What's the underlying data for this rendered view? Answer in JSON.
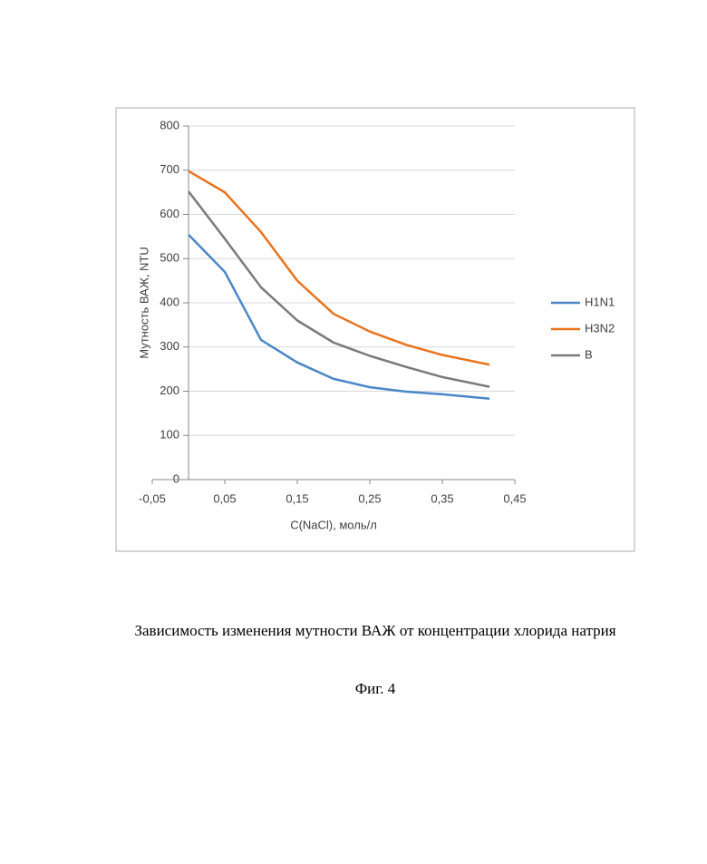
{
  "chart_data": {
    "type": "line",
    "x_label": "C(NaCl), моль/л",
    "y_label": "Мутность ВАЖ, NTU",
    "x": [
      0,
      0.05,
      0.1,
      0.15,
      0.2,
      0.25,
      0.3,
      0.35,
      0.415
    ],
    "series": [
      {
        "name": "H1N1",
        "color": "#4a86c8",
        "values": [
          554,
          470,
          316,
          265,
          228,
          209,
          199,
          193,
          183
        ]
      },
      {
        "name": "H3N2",
        "color": "#e8731f",
        "values": [
          698,
          650,
          560,
          450,
          375,
          335,
          305,
          282,
          260
        ]
      },
      {
        "name": "B",
        "color": "#7a7a7a",
        "values": [
          652,
          545,
          435,
          360,
          310,
          280,
          255,
          232,
          210
        ]
      }
    ],
    "xlim": [
      -0.05,
      0.45
    ],
    "xticks": [
      {
        "value": -0.05,
        "label": "-0,05"
      },
      {
        "value": 0.05,
        "label": "0,05"
      },
      {
        "value": 0.15,
        "label": "0,15"
      },
      {
        "value": 0.25,
        "label": "0,25"
      },
      {
        "value": 0.35,
        "label": "0,35"
      },
      {
        "value": 0.45,
        "label": "0,45"
      }
    ],
    "ylim": [
      0,
      800
    ],
    "yticks": [
      0,
      100,
      200,
      300,
      400,
      500,
      600,
      700,
      800
    ],
    "grid": true,
    "legend": "right"
  },
  "caption": "Зависимость изменения мутности ВАЖ от концентрации хлорида натрия",
  "figure_label": "Фиг. 4"
}
